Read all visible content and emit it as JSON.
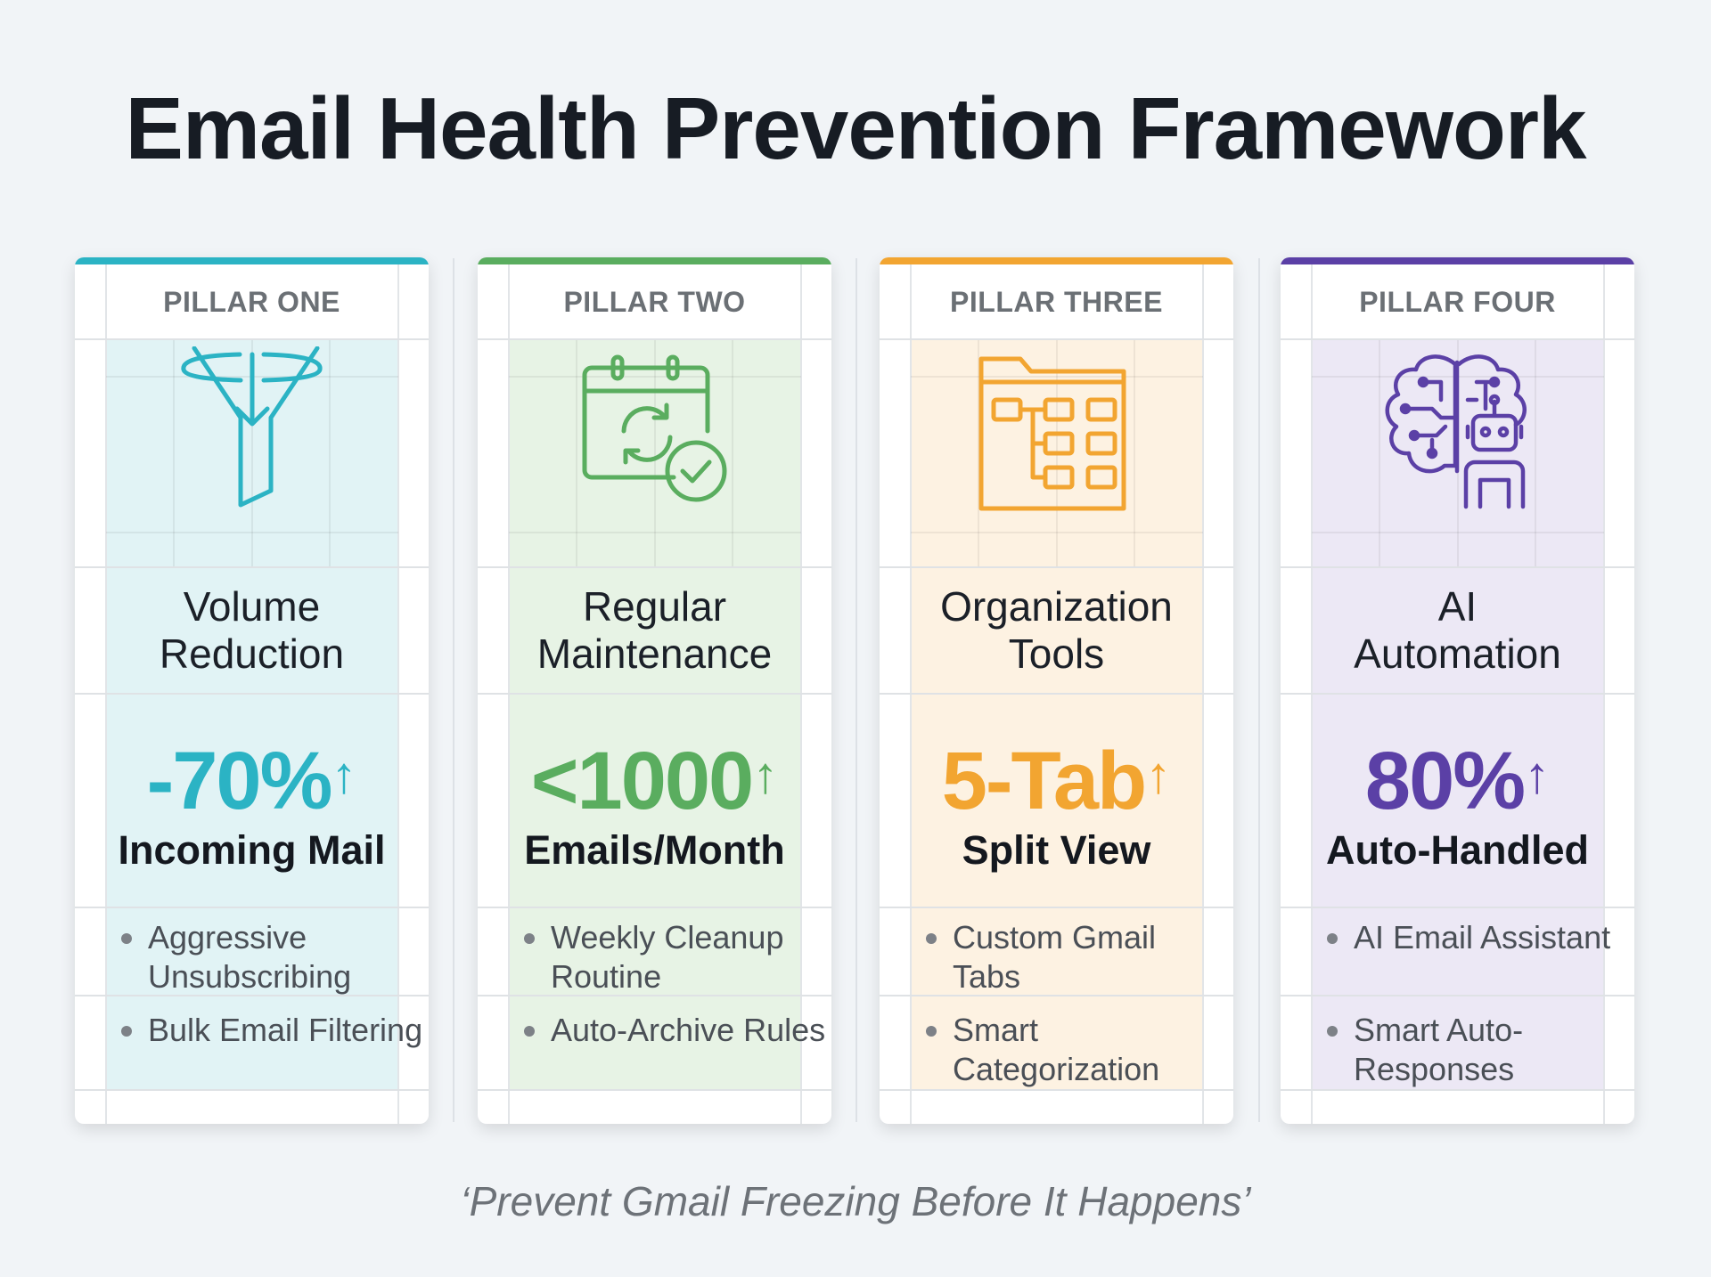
{
  "title": "Email Health Prevention Framework",
  "footer": "‘Prevent Gmail Freezing Before It Happens’",
  "pillars": [
    {
      "label": "PILLAR ONE",
      "name": "Volume Reduction",
      "name_lines": [
        "Volume",
        "Reduction"
      ],
      "stat": "-70%",
      "arrow": "↑",
      "stat_sub": "Incoming Mail",
      "bullets": [
        "Aggressive Unsubscribing",
        "Bulk Email Filtering"
      ],
      "icon": "funnel-icon",
      "color": "#2bb3c4",
      "tint": "#e1f3f5"
    },
    {
      "label": "PILLAR TWO",
      "name": "Regular Maintenance",
      "name_lines": [
        "Regular",
        "Maintenance"
      ],
      "stat": "<1000",
      "arrow": "↑",
      "stat_sub": "Emails/Month",
      "bullets": [
        "Weekly Cleanup Routine",
        "Auto-Archive Rules"
      ],
      "icon": "calendar-sync-check-icon",
      "color": "#5aad5f",
      "tint": "#e7f3e5"
    },
    {
      "label": "PILLAR THREE",
      "name": "Organization Tools",
      "name_lines": [
        "Organization",
        "Tools"
      ],
      "stat": "5-Tab",
      "arrow": "↑",
      "stat_sub": "Split View",
      "bullets": [
        "Custom Gmail Tabs",
        "Smart Categorization"
      ],
      "icon": "folder-tree-icon",
      "color": "#f2a531",
      "tint": "#fdf2e2"
    },
    {
      "label": "PILLAR FOUR",
      "name": "AI Automation",
      "name_lines": [
        "AI",
        "Automation"
      ],
      "stat": "80%",
      "arrow": "↑",
      "stat_sub": "Auto-Handled",
      "bullets": [
        "AI Email Assistant",
        "Smart Auto-Responses"
      ],
      "icon": "brain-robot-icon",
      "color": "#5b40a6",
      "tint": "#ece8f5"
    }
  ]
}
